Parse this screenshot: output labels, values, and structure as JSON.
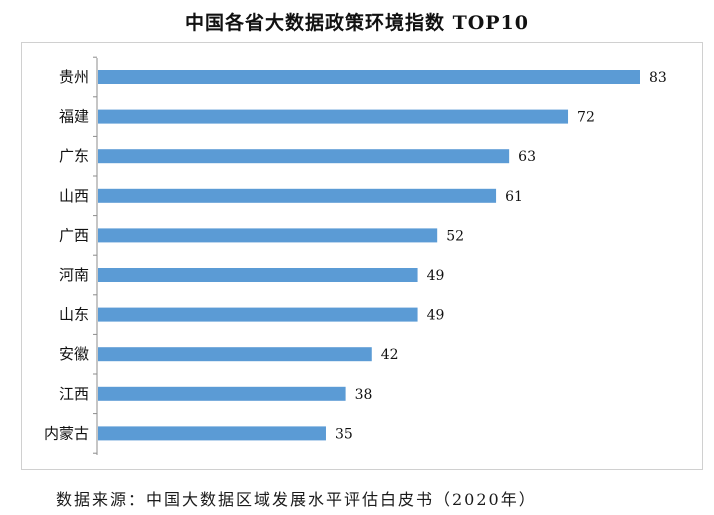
{
  "title": "中国各省大数据政策环境指数 TOP10",
  "source": "数据来源：中国大数据区域发展水平评估白皮书（2020年）",
  "colors": {
    "bar": "#5b9bd5",
    "axis": "#8c8c8c",
    "frame": "#d0d0d0"
  },
  "chart_data": {
    "type": "bar",
    "orientation": "horizontal",
    "title": "中国各省大数据政策环境指数 TOP10",
    "categories": [
      "贵州",
      "福建",
      "广东",
      "山西",
      "广西",
      "河南",
      "山东",
      "安徽",
      "江西",
      "内蒙古"
    ],
    "values": [
      83,
      72,
      63,
      61,
      52,
      49,
      49,
      42,
      38,
      35
    ],
    "xlim": [
      0,
      83
    ],
    "grid": false,
    "legend": "none",
    "data_labels": true
  }
}
